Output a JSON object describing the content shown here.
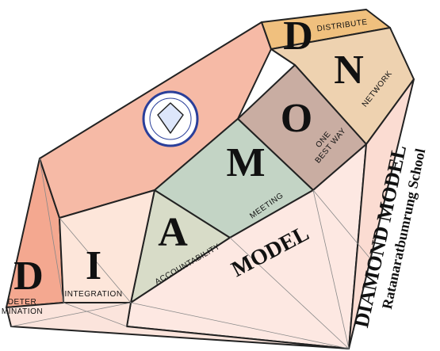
{
  "facets": [
    {
      "letter": "D",
      "word": [
        "DETER",
        "MINATION"
      ]
    },
    {
      "letter": "I",
      "word": [
        "INTEGRATION"
      ]
    },
    {
      "letter": "A",
      "word": [
        "ACCOUNTABILITY"
      ]
    },
    {
      "letter": "M",
      "word": [
        "MEETING"
      ]
    },
    {
      "letter": "O",
      "word": [
        "ONE",
        "BEST WAY"
      ]
    },
    {
      "letter": "N",
      "word": [
        "NETWORK"
      ]
    },
    {
      "letter": "D",
      "word": [
        "DISTRIBUTE"
      ]
    }
  ],
  "model": "MODEL",
  "title": "DIAMOND MODEL",
  "subtitle": "Ratanaratbumrung School"
}
